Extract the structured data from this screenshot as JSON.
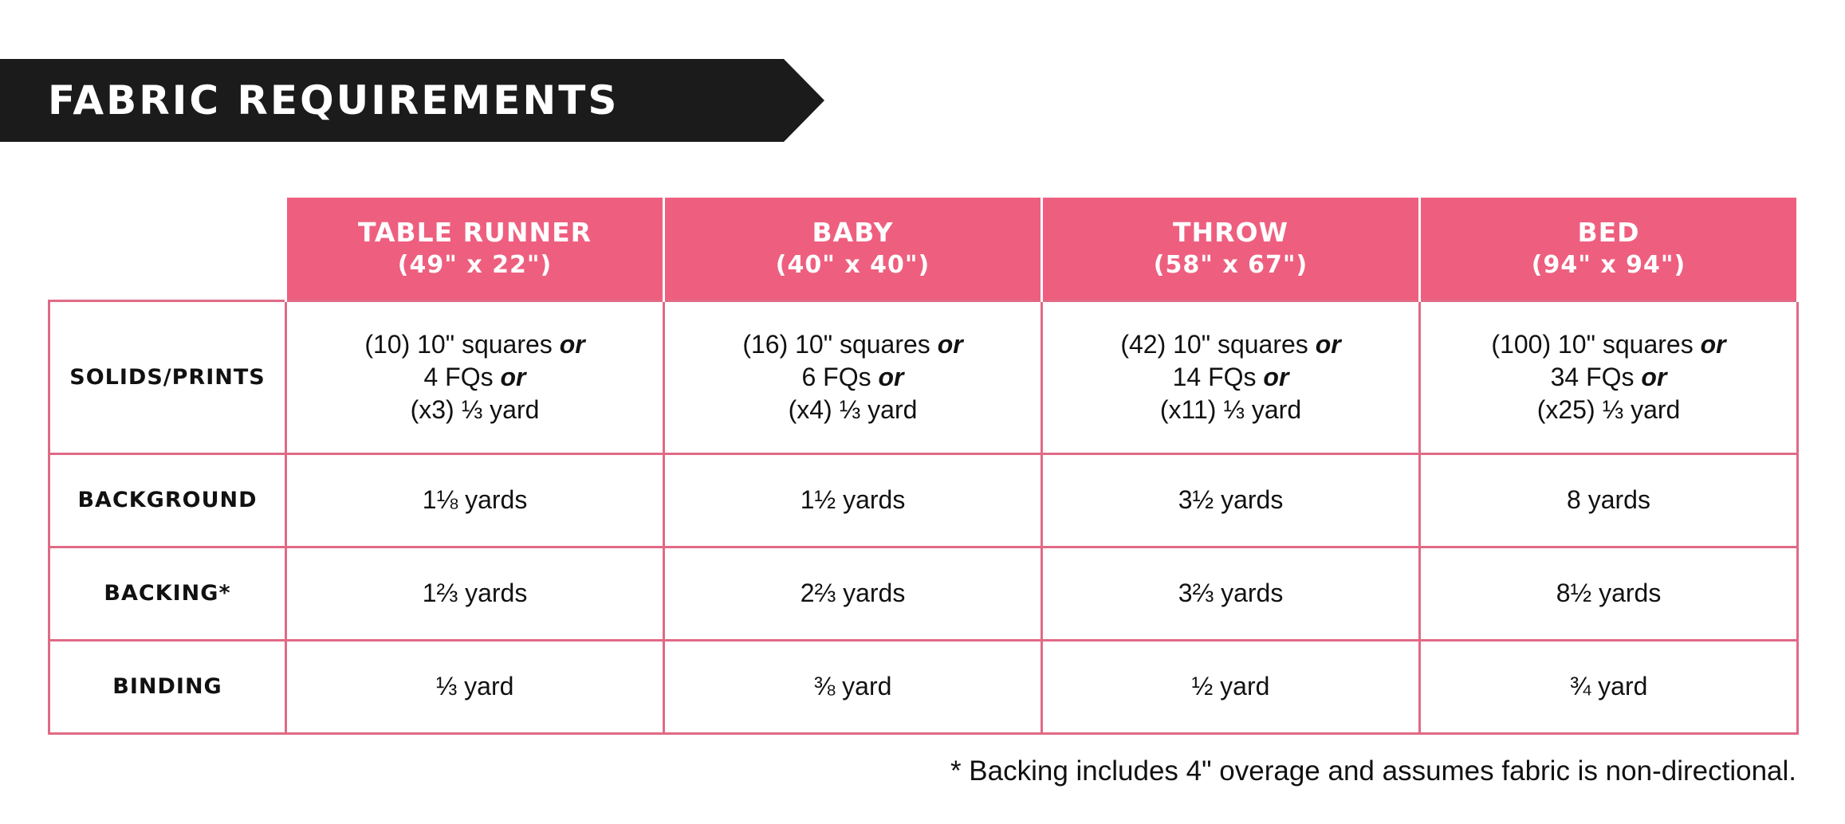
{
  "banner": {
    "title": "FABRIC REQUIREMENTS"
  },
  "table": {
    "columns": [
      {
        "name": "TABLE RUNNER",
        "dims": "(49\" x 22\")"
      },
      {
        "name": "BABY",
        "dims": "(40\" x 40\")"
      },
      {
        "name": "THROW",
        "dims": "(58\" x 67\")"
      },
      {
        "name": "BED",
        "dims": "(94\" x 94\")"
      }
    ],
    "solids_prints": {
      "label": "SOLIDS/PRINTS",
      "or_word": "or",
      "cells": [
        {
          "squares": "(10) 10\" squares",
          "fqs": "4 FQs",
          "yard": "(x3) ⅓ yard"
        },
        {
          "squares": "(16) 10\" squares",
          "fqs": "6 FQs",
          "yard": "(x4) ⅓ yard"
        },
        {
          "squares": "(42) 10\" squares",
          "fqs": "14 FQs",
          "yard": "(x11) ⅓ yard"
        },
        {
          "squares": "(100) 10\" squares",
          "fqs": "34 FQs",
          "yard": "(x25) ⅓ yard"
        }
      ]
    },
    "background": {
      "label": "BACKGROUND",
      "cells": [
        "1⅛ yards",
        "1½ yards",
        "3½ yards",
        "8 yards"
      ]
    },
    "backing": {
      "label": "BACKING*",
      "cells": [
        "1⅔ yards",
        "2⅔ yards",
        "3⅔ yards",
        "8½ yards"
      ]
    },
    "binding": {
      "label": "BINDING",
      "cells": [
        "⅓ yard",
        "⅜ yard",
        "½ yard",
        "¾ yard"
      ]
    }
  },
  "footnote": "* Backing includes 4\" overage and assumes fabric is non-directional.",
  "colors": {
    "banner_background": "#1b1b1b",
    "header_pink": "#ee5f7f",
    "border_pink": "#e06a86"
  }
}
